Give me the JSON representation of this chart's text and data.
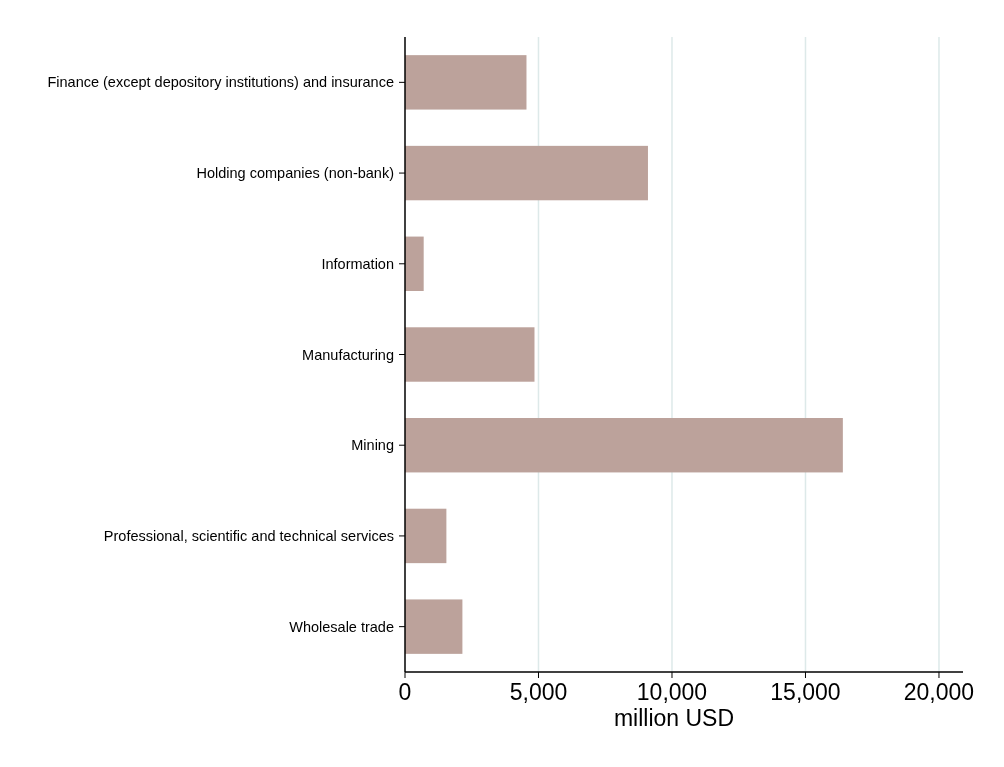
{
  "chart_data": {
    "type": "bar",
    "orientation": "horizontal",
    "categories": [
      "Finance (except depository institutions) and insurance",
      "Holding companies (non-bank)",
      "Information",
      "Manufacturing",
      "Mining",
      "Professional, scientific and technical services",
      "Wholesale trade"
    ],
    "values": [
      4550,
      9100,
      700,
      4850,
      16400,
      1550,
      2150
    ],
    "color": "#bca29b",
    "xlabel": "million USD",
    "xlim": [
      0,
      20900
    ],
    "xticks": [
      {
        "value": 0,
        "label": "0"
      },
      {
        "value": 5000,
        "label": "5,000"
      },
      {
        "value": 10000,
        "label": "10,000"
      },
      {
        "value": 15000,
        "label": "15,000"
      },
      {
        "value": 20000,
        "label": "20,000"
      }
    ],
    "grid": "x"
  }
}
